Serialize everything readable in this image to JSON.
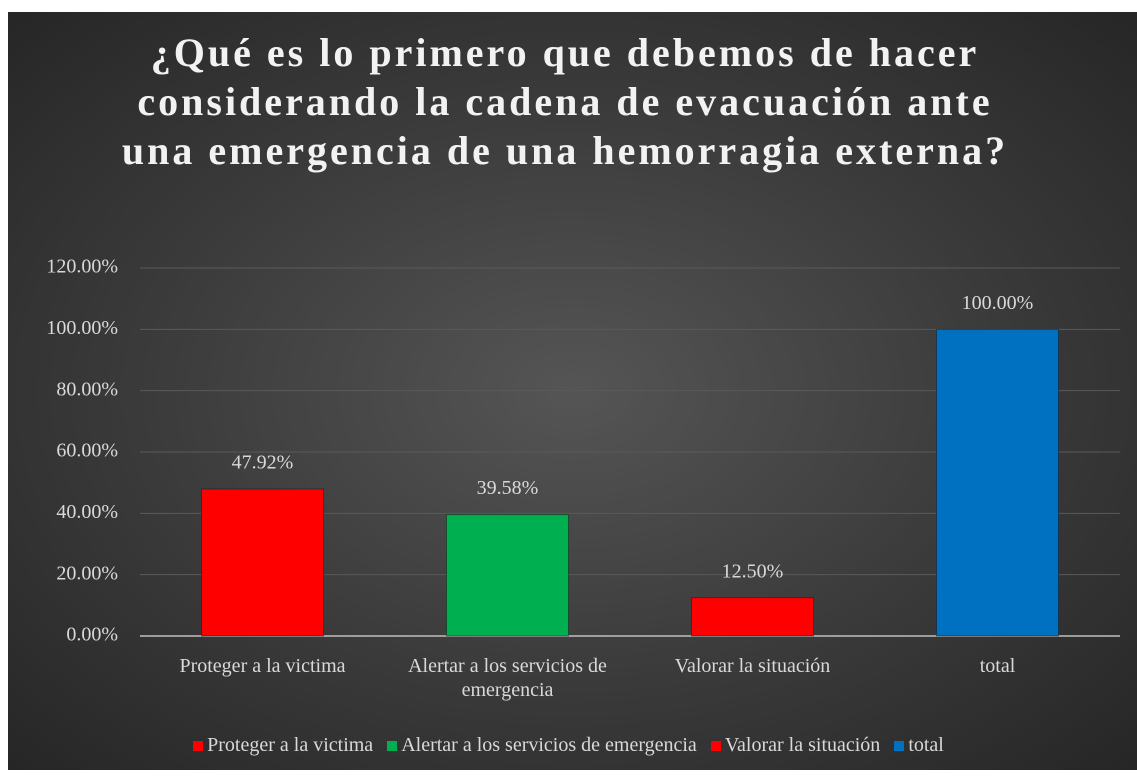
{
  "chart_data": {
    "type": "bar",
    "title": "¿Qué es lo primero que debemos de hacer considerando la cadena de evacuación ante una emergencia de una hemorragia externa?",
    "categories": [
      "Proteger a la victima",
      "Alertar a los servicios de emergencia",
      "Valorar la situación",
      "total"
    ],
    "values": [
      47.92,
      39.58,
      12.5,
      100
    ],
    "value_labels": [
      "47.92%",
      "39.58%",
      "12.50%",
      "100.00%"
    ],
    "colors": [
      "#ff0000",
      "#00b050",
      "#ff0000",
      "#0070c0"
    ],
    "ylim": [
      0,
      120
    ],
    "yticks": [
      {
        "value": 0,
        "label": "0.00%"
      },
      {
        "value": 20,
        "label": "20.00%"
      },
      {
        "value": 40,
        "label": "40.00%"
      },
      {
        "value": 60,
        "label": "60.00%"
      },
      {
        "value": 80,
        "label": "80.00%"
      },
      {
        "value": 100,
        "label": "100.00%"
      },
      {
        "value": 120,
        "label": "120.00%"
      }
    ],
    "grid": true,
    "legend": "bottom"
  }
}
